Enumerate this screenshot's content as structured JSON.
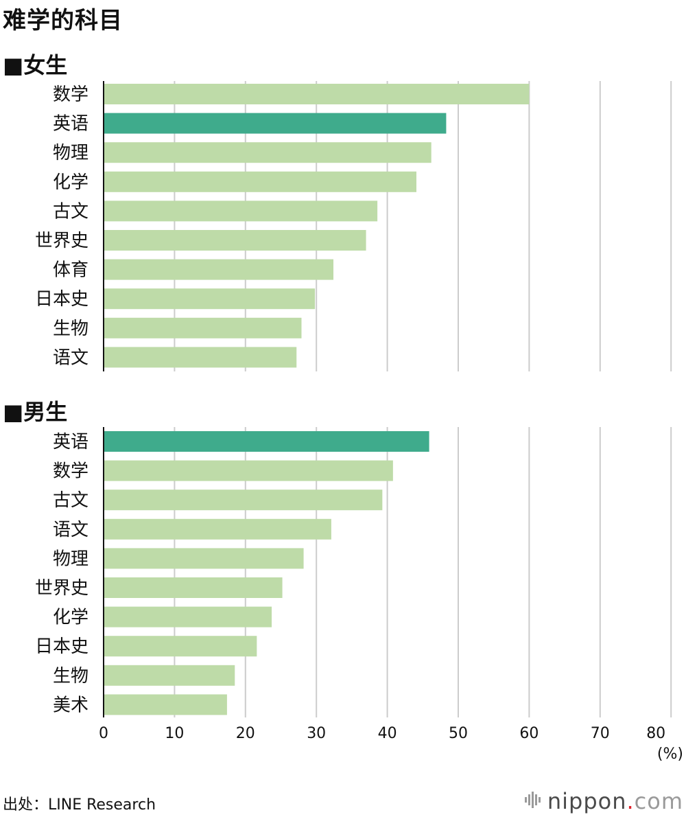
{
  "title": "难学的科目",
  "source": "出处：LINE Research",
  "brand": {
    "name": "nippon",
    "dot": ".",
    "tld": "com",
    "icon": "sound-wave-icon"
  },
  "colors": {
    "highlight": "#3fab8c",
    "bar": "#bedba8",
    "grid": "#cccccc",
    "axis": "#111111"
  },
  "chart_data": [
    {
      "type": "bar",
      "orientation": "horizontal",
      "title": "■女生",
      "categories": [
        "数学",
        "英语",
        "物理",
        "化学",
        "古文",
        "世界史",
        "体育",
        "日本史",
        "生物",
        "语文"
      ],
      "values": [
        60,
        48.3,
        46.2,
        44.1,
        38.6,
        37,
        32.4,
        29.8,
        27.9,
        27.2
      ],
      "highlight": [
        "英语"
      ],
      "xlim": [
        0,
        80
      ],
      "xticks": [
        0,
        10,
        20,
        30,
        40,
        50,
        60,
        70,
        80
      ],
      "unit": "(%)",
      "grid": true
    },
    {
      "type": "bar",
      "orientation": "horizontal",
      "title": "■男生",
      "categories": [
        "英语",
        "数学",
        "古文",
        "语文",
        "物理",
        "世界史",
        "化学",
        "日本史",
        "生物",
        "美术"
      ],
      "values": [
        45.9,
        40.8,
        39.3,
        32.1,
        28.2,
        25.2,
        23.7,
        21.6,
        18.5,
        17.4
      ],
      "highlight": [
        "英语"
      ],
      "xlim": [
        0,
        80
      ],
      "xticks": [
        0,
        10,
        20,
        30,
        40,
        50,
        60,
        70,
        80
      ],
      "unit": "(%)",
      "grid": true
    }
  ]
}
